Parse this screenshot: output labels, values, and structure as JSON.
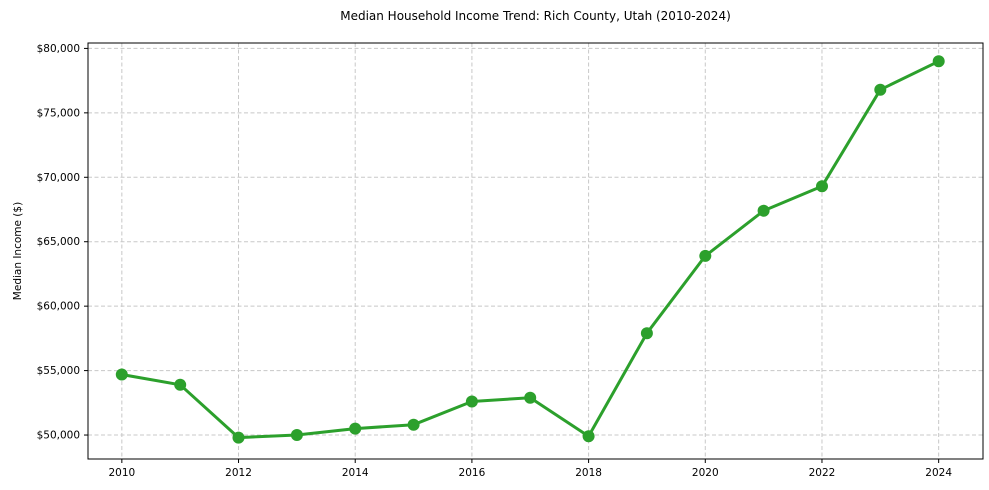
{
  "title": "Median Household Income Trend: Rich County, Utah (2010-2024)",
  "chart_data": {
    "type": "line",
    "series_name": "Median Household Income",
    "x": [
      2010,
      2011,
      2012,
      2013,
      2014,
      2015,
      2016,
      2017,
      2018,
      2019,
      2020,
      2021,
      2022,
      2023,
      2024
    ],
    "values": [
      54700,
      53900,
      49800,
      50000,
      50500,
      50800,
      52600,
      52900,
      49900,
      57900,
      63900,
      67400,
      69300,
      76800,
      79000
    ],
    "ylabel": "Median Income ($)",
    "xlabel": "",
    "xlim": [
      2009.42,
      2024.76
    ],
    "ylim": [
      48140,
      80420
    ],
    "x_ticks": [
      2010,
      2012,
      2014,
      2016,
      2018,
      2020,
      2022,
      2024
    ],
    "x_tick_labels": [
      "2010",
      "2012",
      "2014",
      "2016",
      "2018",
      "2020",
      "2022",
      "2024"
    ],
    "y_ticks": [
      50000,
      55000,
      60000,
      65000,
      70000,
      75000,
      80000
    ],
    "y_tick_labels": [
      "$50,000",
      "$55,000",
      "$60,000",
      "$65,000",
      "$70,000",
      "$75,000",
      "$80,000"
    ],
    "grid": true,
    "legend": "none",
    "line_color": "#2ca02c",
    "marker": "circle",
    "marker_color": "#2ca02c",
    "grid_color": "#c8c8c8",
    "axis_color": "#000000",
    "background": "#ffffff"
  }
}
